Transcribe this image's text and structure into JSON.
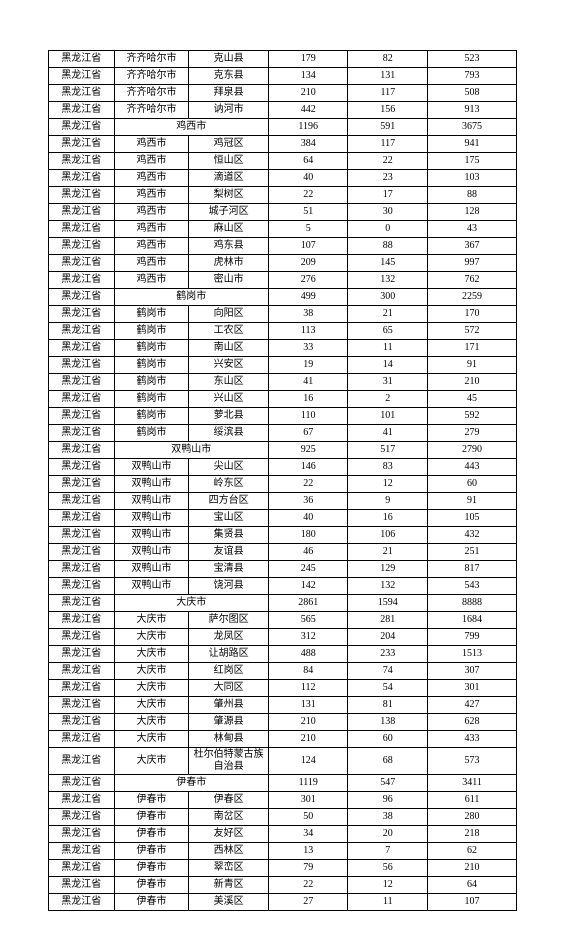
{
  "rows": [
    [
      "黑龙江省",
      "齐齐哈尔市",
      "克山县",
      "179",
      "82",
      "523"
    ],
    [
      "黑龙江省",
      "齐齐哈尔市",
      "克东县",
      "134",
      "131",
      "793"
    ],
    [
      "黑龙江省",
      "齐齐哈尔市",
      "拜泉县",
      "210",
      "117",
      "508"
    ],
    [
      "黑龙江省",
      "齐齐哈尔市",
      "讷河市",
      "442",
      "156",
      "913"
    ],
    [
      "黑龙江省",
      "鸡西市",
      "",
      "1196",
      "591",
      "3675"
    ],
    [
      "黑龙江省",
      "鸡西市",
      "鸡冠区",
      "384",
      "117",
      "941"
    ],
    [
      "黑龙江省",
      "鸡西市",
      "恒山区",
      "64",
      "22",
      "175"
    ],
    [
      "黑龙江省",
      "鸡西市",
      "滴道区",
      "40",
      "23",
      "103"
    ],
    [
      "黑龙江省",
      "鸡西市",
      "梨树区",
      "22",
      "17",
      "88"
    ],
    [
      "黑龙江省",
      "鸡西市",
      "城子河区",
      "51",
      "30",
      "128"
    ],
    [
      "黑龙江省",
      "鸡西市",
      "麻山区",
      "5",
      "0",
      "43"
    ],
    [
      "黑龙江省",
      "鸡西市",
      "鸡东县",
      "107",
      "88",
      "367"
    ],
    [
      "黑龙江省",
      "鸡西市",
      "虎林市",
      "209",
      "145",
      "997"
    ],
    [
      "黑龙江省",
      "鸡西市",
      "密山市",
      "276",
      "132",
      "762"
    ],
    [
      "黑龙江省",
      "鹤岗市",
      "",
      "499",
      "300",
      "2259"
    ],
    [
      "黑龙江省",
      "鹤岗市",
      "向阳区",
      "38",
      "21",
      "170"
    ],
    [
      "黑龙江省",
      "鹤岗市",
      "工农区",
      "113",
      "65",
      "572"
    ],
    [
      "黑龙江省",
      "鹤岗市",
      "南山区",
      "33",
      "11",
      "171"
    ],
    [
      "黑龙江省",
      "鹤岗市",
      "兴安区",
      "19",
      "14",
      "91"
    ],
    [
      "黑龙江省",
      "鹤岗市",
      "东山区",
      "41",
      "31",
      "210"
    ],
    [
      "黑龙江省",
      "鹤岗市",
      "兴山区",
      "16",
      "2",
      "45"
    ],
    [
      "黑龙江省",
      "鹤岗市",
      "萝北县",
      "110",
      "101",
      "592"
    ],
    [
      "黑龙江省",
      "鹤岗市",
      "绥滨县",
      "67",
      "41",
      "279"
    ],
    [
      "黑龙江省",
      "双鸭山市",
      "",
      "925",
      "517",
      "2790"
    ],
    [
      "黑龙江省",
      "双鸭山市",
      "尖山区",
      "146",
      "83",
      "443"
    ],
    [
      "黑龙江省",
      "双鸭山市",
      "岭东区",
      "22",
      "12",
      "60"
    ],
    [
      "黑龙江省",
      "双鸭山市",
      "四方台区",
      "36",
      "9",
      "91"
    ],
    [
      "黑龙江省",
      "双鸭山市",
      "宝山区",
      "40",
      "16",
      "105"
    ],
    [
      "黑龙江省",
      "双鸭山市",
      "集贤县",
      "180",
      "106",
      "432"
    ],
    [
      "黑龙江省",
      "双鸭山市",
      "友谊县",
      "46",
      "21",
      "251"
    ],
    [
      "黑龙江省",
      "双鸭山市",
      "宝清县",
      "245",
      "129",
      "817"
    ],
    [
      "黑龙江省",
      "双鸭山市",
      "饶河县",
      "142",
      "132",
      "543"
    ],
    [
      "黑龙江省",
      "大庆市",
      "",
      "2861",
      "1594",
      "8888"
    ],
    [
      "黑龙江省",
      "大庆市",
      "萨尔图区",
      "565",
      "281",
      "1684"
    ],
    [
      "黑龙江省",
      "大庆市",
      "龙凤区",
      "312",
      "204",
      "799"
    ],
    [
      "黑龙江省",
      "大庆市",
      "让胡路区",
      "488",
      "233",
      "1513"
    ],
    [
      "黑龙江省",
      "大庆市",
      "红岗区",
      "84",
      "74",
      "307"
    ],
    [
      "黑龙江省",
      "大庆市",
      "大同区",
      "112",
      "54",
      "301"
    ],
    [
      "黑龙江省",
      "大庆市",
      "肇州县",
      "131",
      "81",
      "427"
    ],
    [
      "黑龙江省",
      "大庆市",
      "肇源县",
      "210",
      "138",
      "628"
    ],
    [
      "黑龙江省",
      "大庆市",
      "林甸县",
      "210",
      "60",
      "433"
    ],
    [
      "黑龙江省",
      "大庆市",
      "杜尔伯特蒙古族自治县",
      "124",
      "68",
      "573"
    ],
    [
      "黑龙江省",
      "伊春市",
      "",
      "1119",
      "547",
      "3411"
    ],
    [
      "黑龙江省",
      "伊春市",
      "伊春区",
      "301",
      "96",
      "611"
    ],
    [
      "黑龙江省",
      "伊春市",
      "南岔区",
      "50",
      "38",
      "280"
    ],
    [
      "黑龙江省",
      "伊春市",
      "友好区",
      "34",
      "20",
      "218"
    ],
    [
      "黑龙江省",
      "伊春市",
      "西林区",
      "13",
      "7",
      "62"
    ],
    [
      "黑龙江省",
      "伊春市",
      "翠峦区",
      "79",
      "56",
      "210"
    ],
    [
      "黑龙江省",
      "伊春市",
      "新青区",
      "22",
      "12",
      "64"
    ],
    [
      "黑龙江省",
      "伊春市",
      "美溪区",
      "27",
      "11",
      "107"
    ]
  ],
  "merge_rows": [
    4,
    14,
    23,
    32,
    42
  ],
  "wrap_rows": [
    41
  ],
  "colors": {
    "background": "#ffffff",
    "border": "#000000",
    "text": "#000000"
  }
}
